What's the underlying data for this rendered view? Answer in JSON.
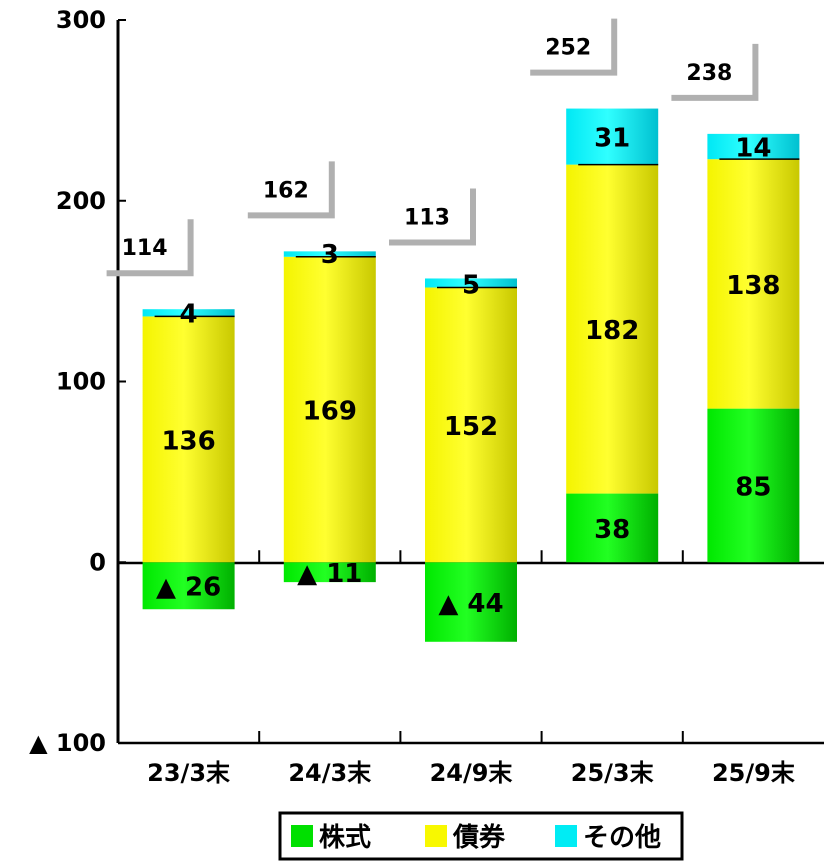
{
  "chart_data": {
    "type": "bar",
    "stacked": true,
    "categories": [
      "23/3末",
      "24/3末",
      "24/9末",
      "25/3末",
      "25/9末"
    ],
    "series": [
      {
        "name": "株式",
        "values": [
          -26,
          -11,
          -44,
          38,
          85
        ],
        "color": "#00e000"
      },
      {
        "name": "債券",
        "values": [
          136,
          169,
          152,
          182,
          138
        ],
        "color": "#f0f000"
      },
      {
        "name": "その他",
        "values": [
          4,
          3,
          5,
          31,
          14
        ],
        "color": "#00e8f0"
      }
    ],
    "segment_labels": [
      [
        "▲ 26",
        "136",
        "4"
      ],
      [
        "▲ 11",
        "169",
        "3"
      ],
      [
        "▲ 44",
        "152",
        "5"
      ],
      [
        "38",
        "182",
        "31"
      ],
      [
        "85",
        "138",
        "14"
      ]
    ],
    "totals": [
      114,
      162,
      113,
      252,
      238
    ],
    "ylim": [
      -100,
      300
    ],
    "y_ticks": [
      {
        "value": 300,
        "label": "300"
      },
      {
        "value": 200,
        "label": "200"
      },
      {
        "value": 100,
        "label": "100"
      },
      {
        "value": 0,
        "label": "0"
      },
      {
        "value": -100,
        "label": "▲ 100"
      }
    ],
    "legend_position": "bottom",
    "grid": false
  }
}
